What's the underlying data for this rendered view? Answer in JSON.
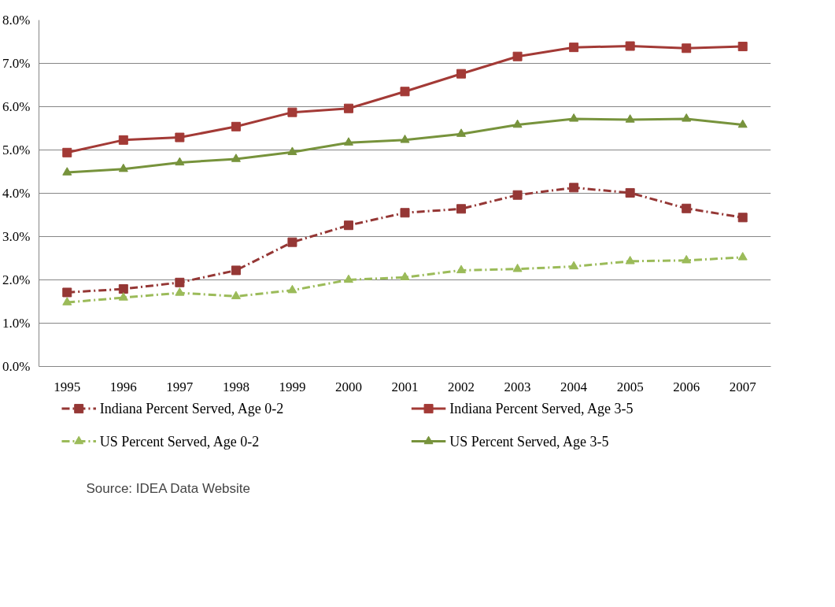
{
  "chart_data": {
    "type": "line",
    "categories": [
      "1995",
      "1996",
      "1997",
      "1998",
      "1999",
      "2000",
      "2001",
      "2002",
      "2003",
      "2004",
      "2005",
      "2006",
      "2007"
    ],
    "series": [
      {
        "name": "Indiana Percent Served, Age 0-2",
        "color": "#953735",
        "marker": "square",
        "line_style": "dashed",
        "values": [
          1.71,
          1.79,
          1.94,
          2.22,
          2.87,
          3.26,
          3.55,
          3.64,
          3.96,
          4.13,
          4.01,
          3.65,
          3.44
        ]
      },
      {
        "name": "Indiana Percent Served, Age 3-5",
        "color": "#a33a36",
        "marker": "square",
        "line_style": "solid",
        "values": [
          4.94,
          5.23,
          5.29,
          5.54,
          5.87,
          5.96,
          6.35,
          6.76,
          7.16,
          7.37,
          7.4,
          7.35,
          7.39
        ]
      },
      {
        "name": "US Percent Served, Age 0-2",
        "color": "#9bbb59",
        "marker": "triangle",
        "line_style": "dashed",
        "values": [
          1.48,
          1.59,
          1.7,
          1.62,
          1.76,
          2.0,
          2.06,
          2.22,
          2.25,
          2.31,
          2.43,
          2.45,
          2.52
        ]
      },
      {
        "name": "US Percent Served, Age 3-5",
        "color": "#77933c",
        "marker": "triangle",
        "line_style": "solid",
        "values": [
          4.48,
          4.56,
          4.71,
          4.79,
          4.95,
          5.17,
          5.23,
          5.37,
          5.58,
          5.72,
          5.7,
          5.72,
          5.58
        ]
      }
    ],
    "ylim": [
      0,
      8
    ],
    "yticks": [
      {
        "value": 0,
        "label": "0.0%"
      },
      {
        "value": 1,
        "label": "1.0%"
      },
      {
        "value": 2,
        "label": "2.0%"
      },
      {
        "value": 3,
        "label": "3.0%"
      },
      {
        "value": 4,
        "label": "4.0%"
      },
      {
        "value": 5,
        "label": "5.0%"
      },
      {
        "value": 6,
        "label": "6.0%"
      },
      {
        "value": 7,
        "label": "7.0%"
      },
      {
        "value": 8,
        "label": "8.0%"
      }
    ],
    "grid": "y",
    "legend": "bottom",
    "annotations": [
      "Source: IDEA Data Website"
    ]
  }
}
